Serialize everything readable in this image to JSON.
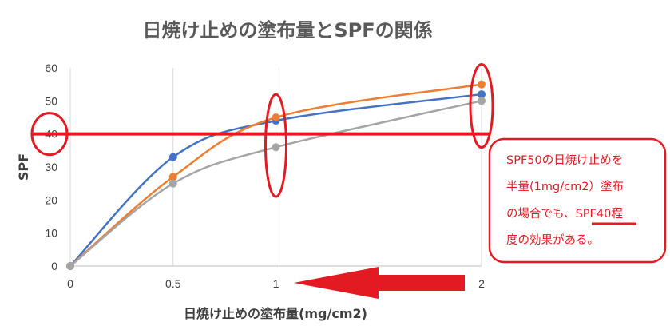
{
  "chart_data": {
    "type": "line",
    "title": "日焼け止めの塗布量とSPFの関係",
    "xlabel": "日焼け止めの塗布量(mg/cm2)",
    "ylabel": "SPF",
    "x": [
      0,
      0.5,
      1,
      2
    ],
    "x_ticks": [
      "0",
      "0.5",
      "1",
      "2"
    ],
    "y_ticks": [
      "0",
      "10",
      "20",
      "30",
      "40",
      "50",
      "60"
    ],
    "xlim": [
      0,
      2
    ],
    "ylim": [
      0,
      60
    ],
    "grid": "vertical",
    "smooth": true,
    "series": [
      {
        "color": "#4472c4",
        "values": [
          0,
          33,
          44,
          52
        ]
      },
      {
        "color": "#ed7d31",
        "values": [
          0,
          27,
          45,
          55
        ]
      },
      {
        "color": "#a5a5a5",
        "values": [
          0,
          25,
          36,
          50
        ]
      }
    ],
    "reference_line": {
      "y": 40,
      "color": "#e31a22"
    },
    "annotation": {
      "lines": [
        "SPF50の日焼け止めを",
        "半量(1mg/cm2）塗布",
        "の場合でも、",
        "度の効果がある。"
      ],
      "highlight": "SPF40",
      "highlight_suffix": "程",
      "color": "#e31a22"
    },
    "arrow_color": "#e31a22"
  }
}
